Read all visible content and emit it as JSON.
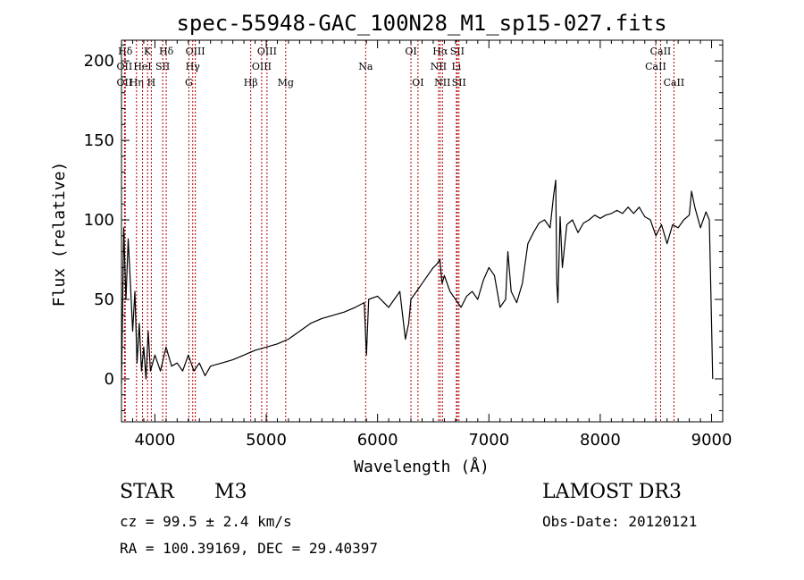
{
  "chart_data": {
    "type": "line",
    "title": "spec-55948-GAC_100N28_M1_sp15-027.fits",
    "xlabel": "Wavelength (Å)",
    "ylabel": "Flux (relative)",
    "xlim": [
      3700,
      9100
    ],
    "ylim": [
      -27,
      213
    ],
    "xticks": [
      4000,
      5000,
      6000,
      7000,
      8000,
      9000
    ],
    "yticks": [
      0,
      50,
      100,
      150,
      200
    ],
    "series": [
      {
        "name": "spectrum",
        "x": [
          3700,
          3720,
          3740,
          3760,
          3780,
          3800,
          3820,
          3840,
          3860,
          3880,
          3900,
          3920,
          3940,
          3960,
          3980,
          4000,
          4050,
          4100,
          4150,
          4200,
          4250,
          4300,
          4350,
          4400,
          4450,
          4500,
          4600,
          4700,
          4800,
          4900,
          5000,
          5100,
          5200,
          5300,
          5400,
          5500,
          5600,
          5700,
          5800,
          5880,
          5900,
          5920,
          6000,
          6100,
          6200,
          6250,
          6280,
          6300,
          6350,
          6400,
          6450,
          6500,
          6530,
          6560,
          6580,
          6600,
          6650,
          6700,
          6750,
          6800,
          6850,
          6900,
          6950,
          7000,
          7050,
          7100,
          7150,
          7170,
          7200,
          7250,
          7300,
          7350,
          7400,
          7450,
          7500,
          7550,
          7580,
          7600,
          7610,
          7620,
          7640,
          7660,
          7700,
          7750,
          7800,
          7850,
          7900,
          7950,
          8000,
          8050,
          8100,
          8150,
          8200,
          8250,
          8300,
          8350,
          8400,
          8450,
          8500,
          8550,
          8600,
          8650,
          8700,
          8750,
          8800,
          8820,
          8850,
          8900,
          8950,
          8980,
          9000,
          9010
        ],
        "values": [
          -3,
          95,
          50,
          88,
          60,
          30,
          55,
          10,
          35,
          5,
          20,
          0,
          30,
          5,
          10,
          15,
          5,
          20,
          8,
          10,
          5,
          15,
          5,
          10,
          2,
          8,
          10,
          12,
          15,
          18,
          20,
          22,
          25,
          30,
          35,
          38,
          40,
          42,
          45,
          48,
          15,
          50,
          52,
          45,
          55,
          25,
          35,
          50,
          55,
          60,
          65,
          70,
          72,
          75,
          60,
          65,
          55,
          50,
          45,
          52,
          55,
          50,
          62,
          70,
          65,
          45,
          50,
          80,
          55,
          48,
          60,
          85,
          92,
          98,
          100,
          95,
          115,
          125,
          60,
          48,
          102,
          70,
          97,
          100,
          92,
          98,
          100,
          103,
          101,
          103,
          104,
          106,
          104,
          108,
          104,
          108,
          102,
          100,
          90,
          97,
          85,
          97,
          95,
          100,
          103,
          118,
          108,
          95,
          105,
          100,
          35,
          0
        ]
      }
    ],
    "lines": [
      {
        "label": "Hδ",
        "wave": 3734,
        "row": 1
      },
      {
        "label": "OII",
        "wave": 3727,
        "row": 2
      },
      {
        "label": "OII",
        "wave": 3727,
        "row": 3
      },
      {
        "label": "Hη",
        "wave": 3835,
        "row": 3
      },
      {
        "label": "K",
        "wave": 3934,
        "row": 1
      },
      {
        "label": "HeI",
        "wave": 3889,
        "row": 2
      },
      {
        "label": "SII",
        "wave": 4070,
        "row": 2
      },
      {
        "label": "H",
        "wave": 3968,
        "row": 3
      },
      {
        "label": "Hδ",
        "wave": 4102,
        "row": 1
      },
      {
        "label": "OIII",
        "wave": 4363,
        "row": 1
      },
      {
        "label": "Hγ",
        "wave": 4340,
        "row": 2
      },
      {
        "label": "G",
        "wave": 4305,
        "row": 3
      },
      {
        "label": "OIII",
        "wave": 5007,
        "row": 1
      },
      {
        "label": "OIII",
        "wave": 4959,
        "row": 2
      },
      {
        "label": "Hβ",
        "wave": 4861,
        "row": 3
      },
      {
        "label": "Mg",
        "wave": 5175,
        "row": 3
      },
      {
        "label": "Na",
        "wave": 5893,
        "row": 2
      },
      {
        "label": "OI",
        "wave": 6300,
        "row": 1
      },
      {
        "label": "OI",
        "wave": 6363,
        "row": 3
      },
      {
        "label": "Hα",
        "wave": 6563,
        "row": 1
      },
      {
        "label": "SII",
        "wave": 6716,
        "row": 1
      },
      {
        "label": "NII",
        "wave": 6548,
        "row": 2
      },
      {
        "label": "Li",
        "wave": 6708,
        "row": 2
      },
      {
        "label": "NII",
        "wave": 6583,
        "row": 3
      },
      {
        "label": "SII",
        "wave": 6731,
        "row": 3
      },
      {
        "label": "CaII",
        "wave": 8542,
        "row": 1
      },
      {
        "label": "CaII",
        "wave": 8498,
        "row": 2
      },
      {
        "label": "CaII",
        "wave": 8662,
        "row": 3
      }
    ]
  },
  "info": {
    "object_class": "STAR",
    "subclass": "M3",
    "survey": "LAMOST DR3",
    "redshift": "cz = 99.5 ± 2.4 km/s",
    "obs_date": "Obs-Date: 20120121",
    "coords": "RA = 100.39169, DEC =  29.40397"
  }
}
